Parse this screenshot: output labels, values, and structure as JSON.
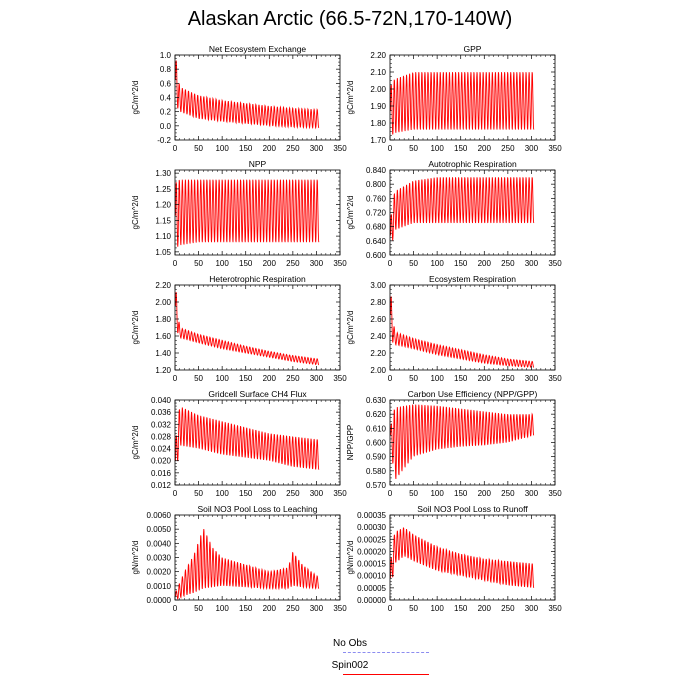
{
  "title": "Alaskan Arctic (66.5-72N,170-140W)",
  "legend": {
    "entries": [
      {
        "label": "No Obs",
        "color": "#8c8cf0",
        "style": "dashed"
      },
      {
        "label": "Spin002",
        "color": "#ff0000",
        "style": "solid"
      }
    ]
  },
  "colors": {
    "series": "#ff0000",
    "axis": "#000000"
  },
  "chart_data": [
    {
      "type": "line",
      "title": "Net Ecosystem Exchange",
      "ylabel": "gC/m^2/d",
      "xlim": [
        0,
        350
      ],
      "ylim": [
        -0.2,
        1.0
      ],
      "xticks": [
        0,
        50,
        100,
        150,
        200,
        250,
        300,
        350
      ],
      "yticks": [
        -0.2,
        0.0,
        0.2,
        0.4,
        0.6,
        0.8,
        1.0
      ],
      "ytick_labels": [
        "-0.2",
        "0.0",
        "0.2",
        "0.4",
        "0.6",
        "0.8",
        "1.0"
      ],
      "series": [
        {
          "x": [
            1,
            10,
            50,
            100,
            150,
            200,
            250,
            305
          ],
          "min": [
            0.3,
            0.2,
            0.1,
            0.06,
            0.03,
            0.0,
            -0.02,
            -0.03
          ],
          "max": [
            1.0,
            0.55,
            0.43,
            0.36,
            0.32,
            0.28,
            0.25,
            0.23
          ]
        }
      ]
    },
    {
      "type": "line",
      "title": "GPP",
      "ylabel": "gC/m^2/d",
      "xlim": [
        0,
        350
      ],
      "ylim": [
        1.7,
        2.2
      ],
      "xticks": [
        0,
        50,
        100,
        150,
        200,
        250,
        300,
        350
      ],
      "yticks": [
        1.7,
        1.8,
        1.9,
        2.0,
        2.1,
        2.2
      ],
      "ytick_labels": [
        "1.70",
        "1.80",
        "1.90",
        "2.00",
        "2.10",
        "2.20"
      ],
      "series": [
        {
          "x": [
            1,
            10,
            50,
            100,
            150,
            200,
            250,
            305
          ],
          "min": [
            1.72,
            1.74,
            1.76,
            1.76,
            1.76,
            1.76,
            1.76,
            1.76
          ],
          "max": [
            2.02,
            2.06,
            2.1,
            2.1,
            2.1,
            2.1,
            2.1,
            2.1
          ]
        }
      ]
    },
    {
      "type": "line",
      "title": "NPP",
      "ylabel": "gC/m^2/d",
      "xlim": [
        0,
        350
      ],
      "ylim": [
        1.04,
        1.31
      ],
      "xticks": [
        0,
        50,
        100,
        150,
        200,
        250,
        300,
        350
      ],
      "yticks": [
        1.05,
        1.1,
        1.15,
        1.2,
        1.25,
        1.3
      ],
      "ytick_labels": [
        "1.05",
        "1.10",
        "1.15",
        "1.20",
        "1.25",
        "1.30"
      ],
      "series": [
        {
          "x": [
            1,
            10,
            50,
            100,
            150,
            200,
            250,
            305
          ],
          "min": [
            1.06,
            1.07,
            1.08,
            1.08,
            1.08,
            1.08,
            1.08,
            1.08
          ],
          "max": [
            1.27,
            1.28,
            1.28,
            1.28,
            1.28,
            1.28,
            1.28,
            1.28
          ]
        }
      ]
    },
    {
      "type": "line",
      "title": "Autotrophic Respiration",
      "ylabel": "gC/m^2/d",
      "xlim": [
        0,
        350
      ],
      "ylim": [
        0.6,
        0.84
      ],
      "xticks": [
        0,
        50,
        100,
        150,
        200,
        250,
        300,
        350
      ],
      "yticks": [
        0.6,
        0.64,
        0.68,
        0.72,
        0.76,
        0.8,
        0.84
      ],
      "ytick_labels": [
        "0.600",
        "0.640",
        "0.680",
        "0.720",
        "0.760",
        "0.800",
        "0.840"
      ],
      "series": [
        {
          "x": [
            1,
            10,
            50,
            100,
            150,
            200,
            250,
            305
          ],
          "min": [
            0.61,
            0.67,
            0.69,
            0.69,
            0.69,
            0.69,
            0.69,
            0.69
          ],
          "max": [
            0.7,
            0.78,
            0.81,
            0.82,
            0.82,
            0.82,
            0.82,
            0.82
          ]
        }
      ]
    },
    {
      "type": "line",
      "title": "Heterotrophic Respiration",
      "ylabel": "gC/m^2/d",
      "xlim": [
        0,
        350
      ],
      "ylim": [
        1.2,
        2.2
      ],
      "xticks": [
        0,
        50,
        100,
        150,
        200,
        250,
        300,
        350
      ],
      "yticks": [
        1.2,
        1.4,
        1.6,
        1.8,
        2.0,
        2.2
      ],
      "ytick_labels": [
        "1.20",
        "1.40",
        "1.60",
        "1.80",
        "2.00",
        "2.20"
      ],
      "series": [
        {
          "x": [
            1,
            10,
            50,
            100,
            150,
            200,
            250,
            305
          ],
          "min": [
            1.7,
            1.58,
            1.52,
            1.45,
            1.4,
            1.35,
            1.3,
            1.26
          ],
          "max": [
            2.2,
            1.7,
            1.62,
            1.55,
            1.48,
            1.42,
            1.37,
            1.33
          ]
        }
      ]
    },
    {
      "type": "line",
      "title": "Ecosystem Respiration",
      "ylabel": "gC/m^2/d",
      "xlim": [
        0,
        350
      ],
      "ylim": [
        2.0,
        3.0
      ],
      "xticks": [
        0,
        50,
        100,
        150,
        200,
        250,
        300,
        350
      ],
      "yticks": [
        2.0,
        2.2,
        2.4,
        2.6,
        2.8,
        3.0
      ],
      "ytick_labels": [
        "2.00",
        "2.20",
        "2.40",
        "2.60",
        "2.80",
        "3.00"
      ],
      "series": [
        {
          "x": [
            1,
            10,
            50,
            100,
            150,
            200,
            250,
            305
          ],
          "min": [
            2.35,
            2.3,
            2.25,
            2.18,
            2.13,
            2.08,
            2.05,
            2.03
          ],
          "max": [
            2.95,
            2.45,
            2.37,
            2.3,
            2.24,
            2.18,
            2.13,
            2.1
          ]
        }
      ]
    },
    {
      "type": "line",
      "title": "Gridcell Surface CH4 Flux",
      "ylabel": "gC/m^2/d",
      "xlim": [
        0,
        350
      ],
      "ylim": [
        0.012,
        0.04
      ],
      "xticks": [
        0,
        50,
        100,
        150,
        200,
        250,
        300,
        350
      ],
      "yticks": [
        0.012,
        0.016,
        0.02,
        0.024,
        0.028,
        0.032,
        0.036,
        0.04
      ],
      "ytick_labels": [
        "0.012",
        "0.016",
        "0.020",
        "0.024",
        "0.028",
        "0.032",
        "0.036",
        "0.040"
      ],
      "series": [
        {
          "x": [
            1,
            10,
            50,
            100,
            150,
            200,
            250,
            305
          ],
          "min": [
            0.014,
            0.025,
            0.024,
            0.022,
            0.021,
            0.02,
            0.018,
            0.017
          ],
          "max": [
            0.026,
            0.038,
            0.035,
            0.033,
            0.031,
            0.029,
            0.028,
            0.027
          ]
        }
      ]
    },
    {
      "type": "line",
      "title": "Carbon Use Efficiency (NPP/GPP)",
      "ylabel": "NPP/GPP",
      "xlim": [
        0,
        350
      ],
      "ylim": [
        0.57,
        0.63
      ],
      "xticks": [
        0,
        50,
        100,
        150,
        200,
        250,
        300,
        350
      ],
      "yticks": [
        0.57,
        0.58,
        0.59,
        0.6,
        0.61,
        0.62,
        0.63
      ],
      "ytick_labels": [
        "0.570",
        "0.580",
        "0.590",
        "0.600",
        "0.610",
        "0.620",
        "0.630"
      ],
      "series": [
        {
          "x": [
            1,
            10,
            50,
            100,
            150,
            200,
            250,
            305
          ],
          "min": [
            0.6,
            0.573,
            0.59,
            0.595,
            0.597,
            0.598,
            0.6,
            0.605
          ],
          "max": [
            0.61,
            0.625,
            0.627,
            0.626,
            0.624,
            0.622,
            0.62,
            0.62
          ]
        }
      ]
    },
    {
      "type": "line",
      "title": "Soil NO3 Pool Loss to Leaching",
      "ylabel": "gN/m^2/d",
      "xlim": [
        0,
        350
      ],
      "ylim": [
        0.0,
        0.006
      ],
      "xticks": [
        0,
        50,
        100,
        150,
        200,
        250,
        300,
        350
      ],
      "yticks": [
        0.0,
        0.001,
        0.002,
        0.003,
        0.004,
        0.005,
        0.006
      ],
      "ytick_labels": [
        "0.0000",
        "0.0010",
        "0.0020",
        "0.0030",
        "0.0040",
        "0.0050",
        "0.0060"
      ],
      "series": [
        {
          "x": [
            1,
            20,
            40,
            60,
            80,
            100,
            150,
            200,
            240,
            250,
            270,
            305
          ],
          "min": [
            0.0,
            0.0003,
            0.0005,
            0.0008,
            0.0009,
            0.001,
            0.0009,
            0.0008,
            0.0008,
            0.001,
            0.0009,
            0.0008
          ],
          "max": [
            0.0005,
            0.002,
            0.0032,
            0.0051,
            0.0037,
            0.003,
            0.0025,
            0.002,
            0.0023,
            0.0034,
            0.0025,
            0.0016
          ]
        }
      ]
    },
    {
      "type": "line",
      "title": "Soil NO3 Pool Loss to Runoff",
      "ylabel": "gN/m^2/d",
      "xlim": [
        0,
        350
      ],
      "ylim": [
        0.0,
        0.00035
      ],
      "xticks": [
        0,
        50,
        100,
        150,
        200,
        250,
        300,
        350
      ],
      "yticks": [
        0.0,
        5e-05,
        0.0001,
        0.00015,
        0.0002,
        0.00025,
        0.0003,
        0.00035
      ],
      "ytick_labels": [
        "0.00000",
        "0.00005",
        "0.00010",
        "0.00015",
        "0.00020",
        "0.00025",
        "0.00030",
        "0.00035"
      ],
      "series": [
        {
          "x": [
            1,
            10,
            30,
            50,
            100,
            150,
            200,
            250,
            305
          ],
          "min": [
            3e-05,
            0.00015,
            0.00018,
            0.00016,
            0.00012,
            0.0001,
            8e-05,
            6e-05,
            5e-05
          ],
          "max": [
            0.00015,
            0.00028,
            0.0003,
            0.00027,
            0.00022,
            0.00019,
            0.00017,
            0.00016,
            0.00015
          ]
        }
      ]
    }
  ]
}
